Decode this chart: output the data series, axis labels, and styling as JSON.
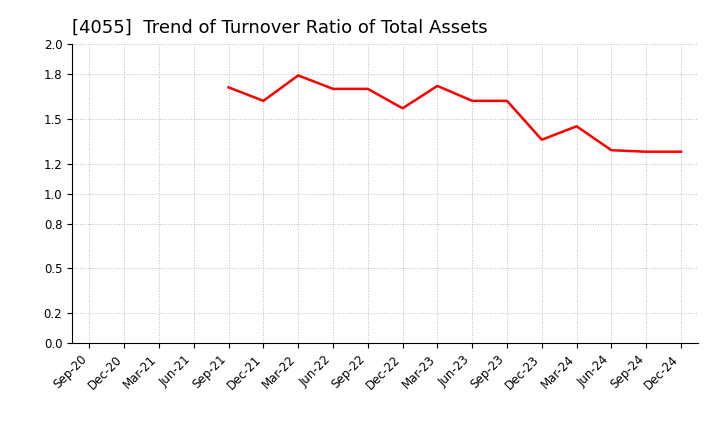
{
  "title": "[4055]  Trend of Turnover Ratio of Total Assets",
  "x_labels": [
    "Sep-20",
    "Dec-20",
    "Mar-21",
    "Jun-21",
    "Sep-21",
    "Dec-21",
    "Mar-22",
    "Jun-22",
    "Sep-22",
    "Dec-22",
    "Mar-23",
    "Jun-23",
    "Sep-23",
    "Dec-23",
    "Mar-24",
    "Jun-24",
    "Sep-24",
    "Dec-24"
  ],
  "y_values": [
    null,
    null,
    null,
    null,
    1.71,
    1.62,
    1.79,
    1.7,
    1.7,
    1.57,
    1.72,
    1.62,
    1.62,
    1.36,
    1.45,
    1.29,
    1.28,
    1.28
  ],
  "line_color": "#ff0000",
  "line_width": 1.8,
  "ylim": [
    0.0,
    2.0
  ],
  "yticks": [
    0.0,
    0.2,
    0.5,
    0.8,
    1.0,
    1.2,
    1.5,
    1.8,
    2.0
  ],
  "background_color": "#ffffff",
  "grid_color": "#bbbbbb",
  "title_fontsize": 13,
  "tick_fontsize": 8.5
}
